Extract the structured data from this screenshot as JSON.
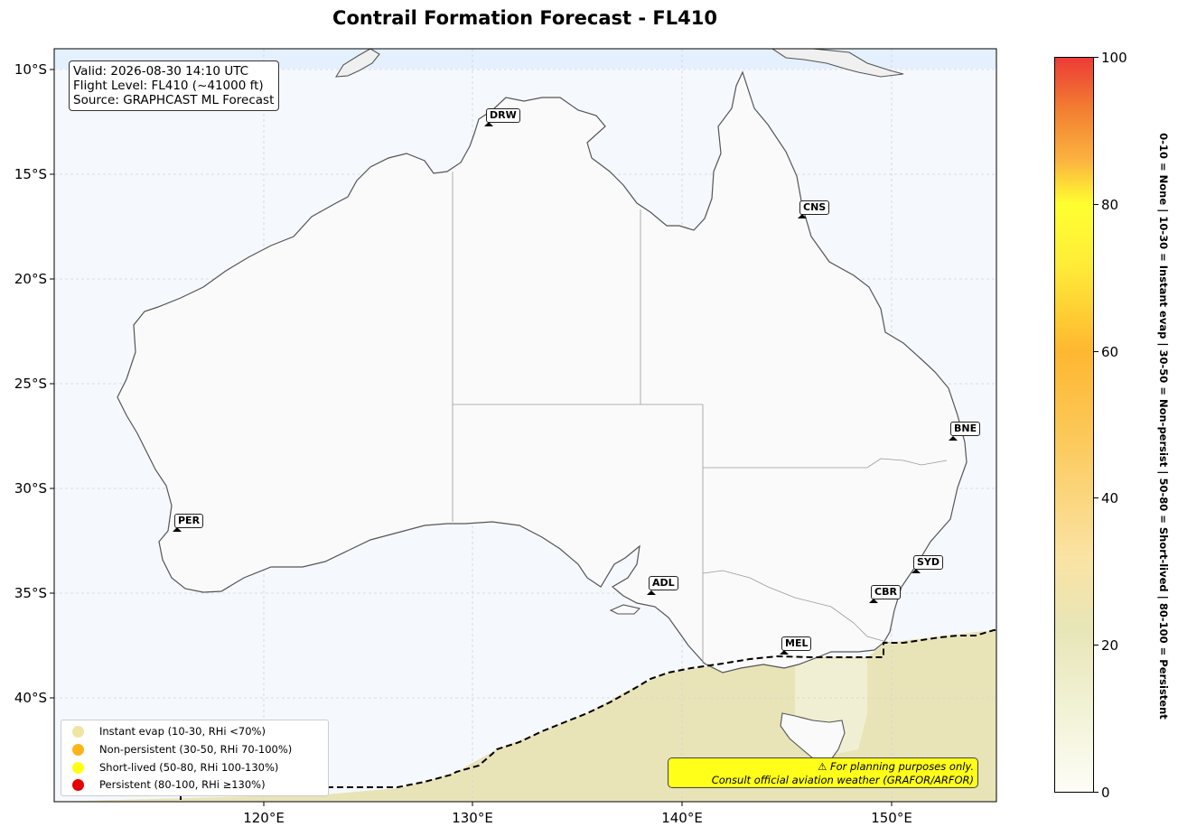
{
  "title": "Contrail Formation Forecast - FL410",
  "info": {
    "valid": "Valid: 2026-08-30 14:10 UTC",
    "flight_level": "Flight Level: FL410 (~41000 ft)",
    "source": "Source: GRAPHCAST ML Forecast"
  },
  "axes": {
    "lat_labels": [
      "10°S",
      "15°S",
      "20°S",
      "25°S",
      "30°S",
      "35°S",
      "40°S"
    ],
    "lon_labels": [
      "120°E",
      "130°E",
      "140°E",
      "150°E"
    ],
    "lat_range": [
      -45,
      -9.3
    ],
    "lon_range": [
      110,
      155
    ]
  },
  "cities": [
    {
      "code": "DRW",
      "lat": -12.46,
      "lon": 130.84
    },
    {
      "code": "CNS",
      "lat": -16.92,
      "lon": 145.77
    },
    {
      "code": "BNE",
      "lat": -27.47,
      "lon": 153.03
    },
    {
      "code": "PER",
      "lat": -31.95,
      "lon": 115.86
    },
    {
      "code": "ADL",
      "lat": -34.93,
      "lon": 138.6
    },
    {
      "code": "SYD",
      "lat": -33.87,
      "lon": 151.21
    },
    {
      "code": "CBR",
      "lat": -35.28,
      "lon": 149.13
    },
    {
      "code": "MEL",
      "lat": -37.81,
      "lon": 144.96
    }
  ],
  "legend": [
    {
      "label": "Instant evap (10-30, RHi <70%)",
      "color": "#f0e4a4"
    },
    {
      "label": "Non-persistent (30-50, RHi 70-100%)",
      "color": "#fcb418"
    },
    {
      "label": "Short-lived (50-80, RHi 100-130%)",
      "color": "#ffff12"
    },
    {
      "label": "Persistent (80-100, RHi ≥130%)",
      "color": "#e60000"
    }
  ],
  "disclaimer": {
    "line1": "⚠ For planning purposes only.",
    "line2": "Consult official aviation weather (GRAFOR/ARFOR)"
  },
  "colorbar": {
    "min": 0,
    "max": 100,
    "ticks": [
      "0",
      "20",
      "40",
      "60",
      "80",
      "100"
    ],
    "caption": "0-10 = None  |  10-30 = Instant evap  |  30-50 = Non-persist  |  50-80 = Short-lived  |  80-100 = Persistent"
  }
}
